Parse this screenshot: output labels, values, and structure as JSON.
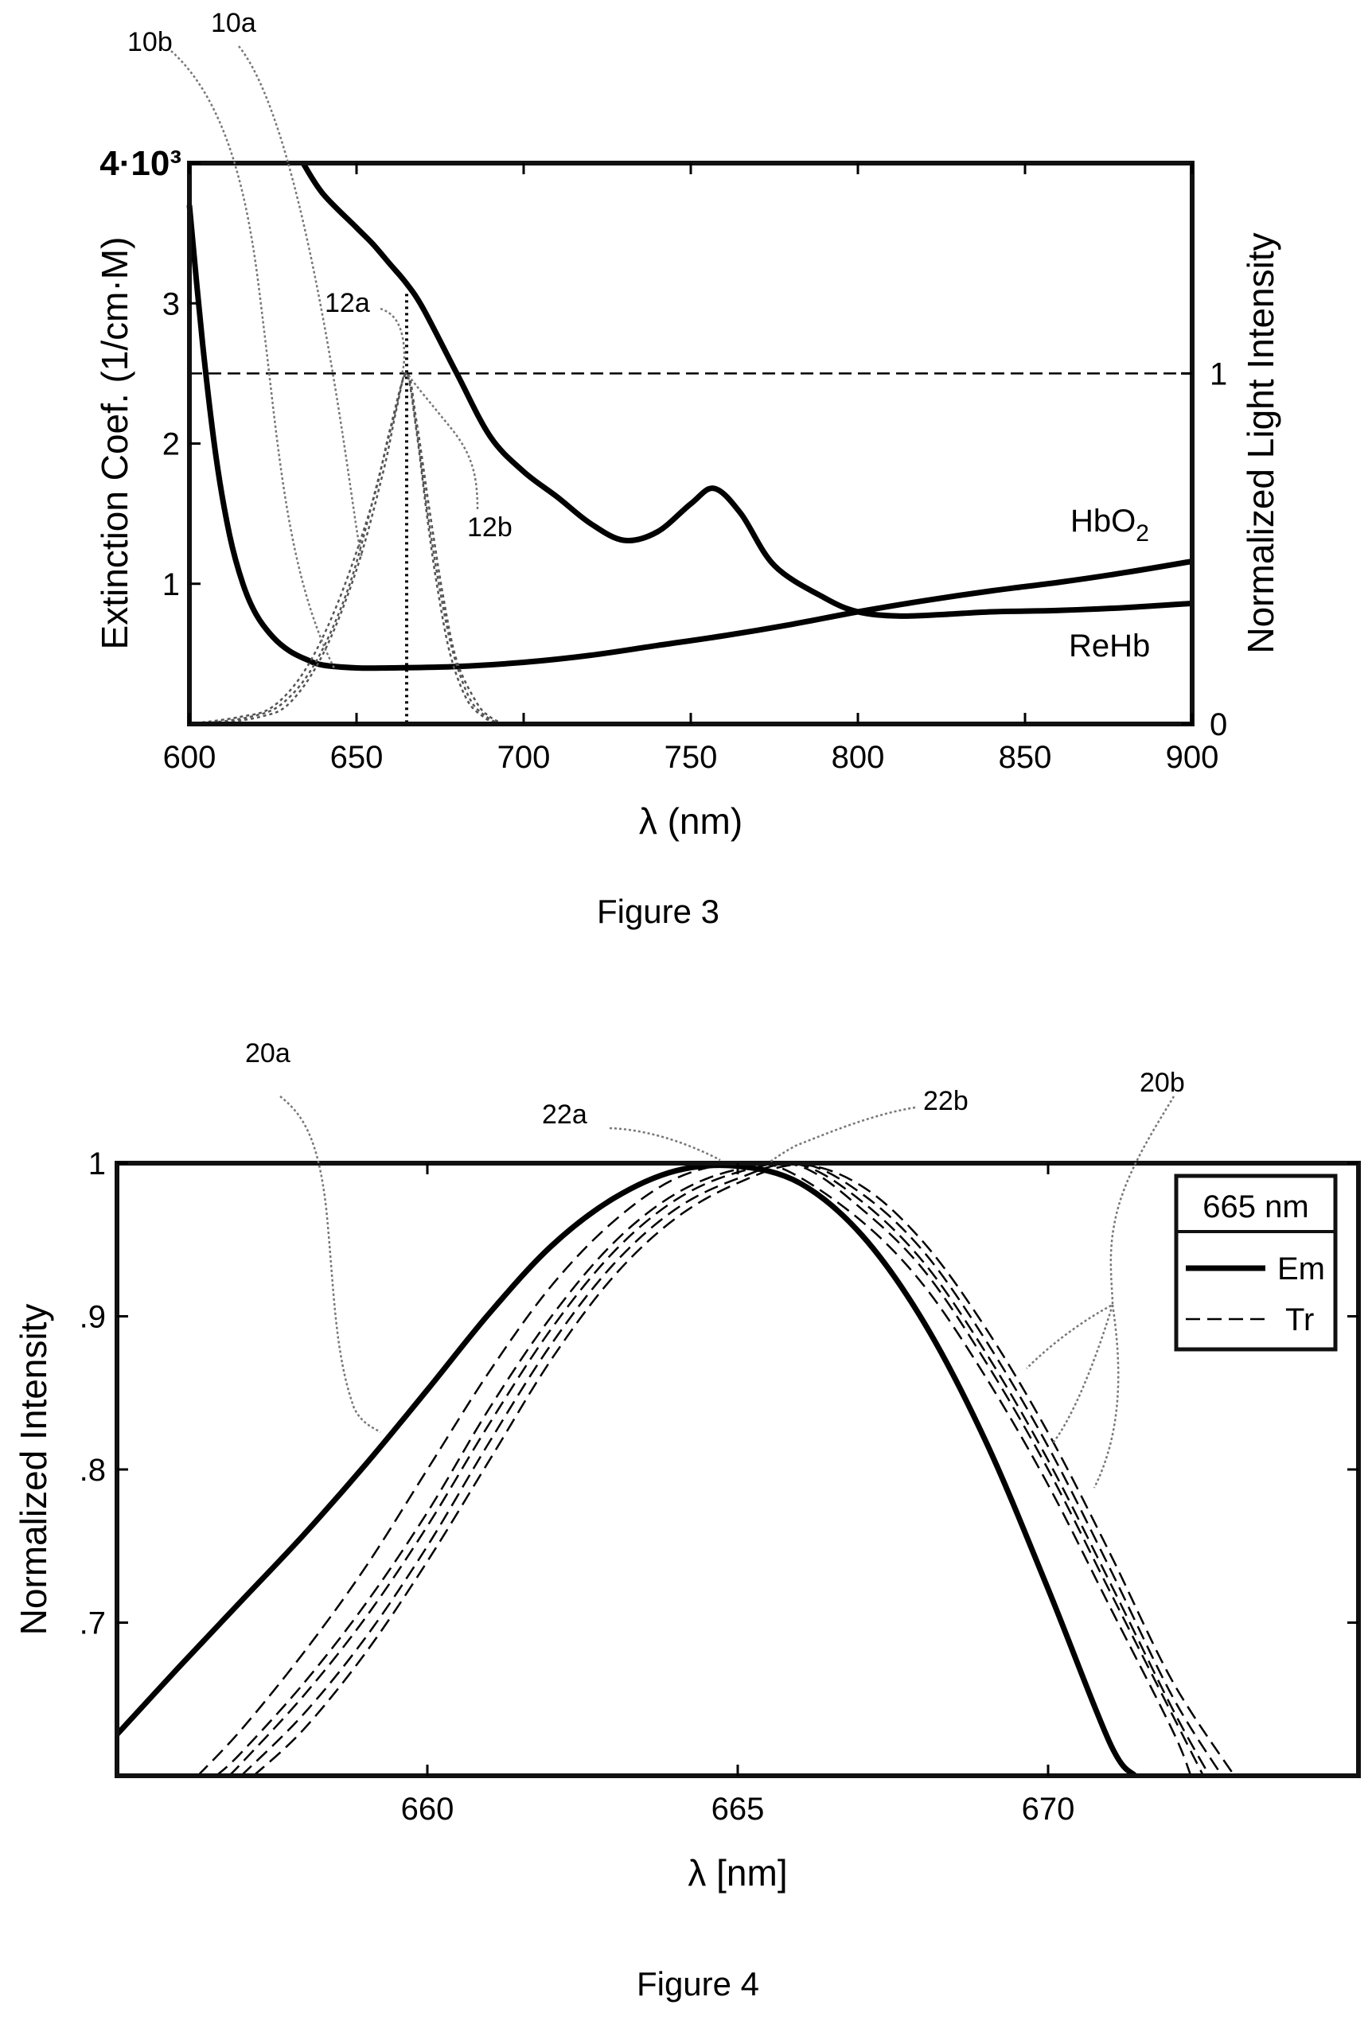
{
  "figure3": {
    "caption": "Figure 3",
    "chart_data": {
      "type": "line",
      "title": "",
      "xlabel": "λ (nm)",
      "ylabel_left": "Extinction Coef. (1/cm·M)",
      "ylabel_right": "Normalized Light Intensity",
      "xlim": [
        600,
        900
      ],
      "ylim_left": [
        0,
        4000
      ],
      "ylim_right": [
        0,
        1.6
      ],
      "x_ticks": [
        "600",
        "650",
        "700",
        "750",
        "800",
        "850",
        "900"
      ],
      "y_ticks_left": [
        {
          "value": 1000,
          "label": "1"
        },
        {
          "value": 2000,
          "label": "2"
        },
        {
          "value": 3000,
          "label": "3"
        },
        {
          "value": 4000,
          "label": "4·10³"
        }
      ],
      "y_ticks_right": [
        {
          "value": 0,
          "label": "0"
        },
        {
          "value": 1,
          "label": "1"
        }
      ],
      "reference_line": {
        "axis": "right",
        "y": 1,
        "style": "dashed"
      },
      "marker_line": {
        "x": 665,
        "style": "dotted"
      },
      "series": [
        {
          "name": "HbO2",
          "axis": "left",
          "style": "solid-thick",
          "x": [
            634,
            640,
            650,
            655,
            660,
            665,
            670,
            680,
            690,
            700,
            710,
            720,
            730,
            740,
            750,
            757,
            765,
            775,
            790,
            800,
            812,
            825,
            840,
            860,
            880,
            900
          ],
          "y": [
            4000,
            3780,
            3540,
            3420,
            3280,
            3140,
            2960,
            2500,
            2050,
            1800,
            1620,
            1430,
            1310,
            1370,
            1570,
            1680,
            1500,
            1130,
            900,
            800,
            770,
            780,
            800,
            810,
            830,
            860
          ]
        },
        {
          "name": "ReHb",
          "axis": "left",
          "style": "solid-thick",
          "x": [
            600,
            604,
            608,
            612,
            616,
            620,
            625,
            630,
            635,
            640,
            650,
            660,
            680,
            700,
            720,
            740,
            760,
            780,
            800,
            820,
            840,
            860,
            880,
            900
          ],
          "y": [
            3700,
            2700,
            1900,
            1350,
            1000,
            780,
            620,
            520,
            460,
            420,
            400,
            400,
            410,
            440,
            490,
            560,
            630,
            710,
            800,
            880,
            950,
            1010,
            1080,
            1160
          ]
        },
        {
          "name": "",
          "axis": "right",
          "style": "dashed-thin",
          "x": [
            600,
            615,
            625,
            635,
            645,
            655,
            660,
            665,
            668,
            672,
            676,
            680,
            686,
            690,
            694
          ],
          "y": [
            0,
            0.02,
            0.05,
            0.16,
            0.36,
            0.64,
            0.84,
            1.0,
            0.86,
            0.6,
            0.36,
            0.18,
            0.06,
            0.02,
            0
          ]
        },
        {
          "name": "",
          "axis": "right",
          "style": "dashed-thin",
          "x": [
            603,
            618,
            628,
            638,
            648,
            656,
            661,
            665,
            668,
            671,
            675,
            679,
            684,
            689,
            693
          ],
          "y": [
            0,
            0.02,
            0.06,
            0.18,
            0.4,
            0.68,
            0.87,
            1.0,
            0.84,
            0.62,
            0.38,
            0.2,
            0.07,
            0.02,
            0
          ]
        },
        {
          "name": "",
          "axis": "right",
          "style": "dashed-thin",
          "x": [
            607,
            621,
            630,
            640,
            650,
            658,
            662,
            665,
            668,
            671,
            674,
            678,
            683,
            688,
            692
          ],
          "y": [
            0,
            0.02,
            0.06,
            0.2,
            0.44,
            0.72,
            0.9,
            1.0,
            0.83,
            0.6,
            0.4,
            0.2,
            0.07,
            0.02,
            0
          ]
        }
      ],
      "curve_labels": [
        "HbO2",
        "ReHb"
      ],
      "reference_labels": [
        "10a",
        "10b",
        "12a",
        "12b"
      ]
    }
  },
  "figure4": {
    "caption": "Figure 4",
    "chart_data": {
      "type": "line",
      "title": "",
      "xlabel": "λ [nm]",
      "ylabel": "Normalized Intensity",
      "xlim": [
        655,
        675
      ],
      "ylim": [
        0.6,
        1.0
      ],
      "x_ticks": [
        "660",
        "665",
        "670"
      ],
      "y_ticks": [
        {
          "value": 0.7,
          "label": ".7"
        },
        {
          "value": 0.8,
          "label": ".8"
        },
        {
          "value": 0.9,
          "label": ".9"
        },
        {
          "value": 1.0,
          "label": "1"
        }
      ],
      "legend": {
        "position": "top-right",
        "title": "665 nm",
        "entries": [
          {
            "label": "Em",
            "style": "solid-thick"
          },
          {
            "label": "Tr",
            "style": "dashed"
          }
        ]
      },
      "series": [
        {
          "name": "Em",
          "style": "solid-thick",
          "x": [
            655,
            656,
            657,
            658,
            659,
            660,
            661,
            662,
            663,
            664,
            665,
            666,
            667,
            668,
            669,
            670,
            671,
            671.4
          ],
          "y": [
            0.627,
            0.671,
            0.714,
            0.757,
            0.803,
            0.852,
            0.902,
            0.946,
            0.977,
            0.995,
            0.998,
            0.987,
            0.953,
            0.896,
            0.818,
            0.722,
            0.621,
            0.6
          ]
        },
        {
          "name": "Tr",
          "style": "dashed",
          "x": [
            656.3,
            657,
            658,
            659,
            660,
            661,
            662,
            663,
            664,
            665,
            665.8,
            667,
            668,
            669,
            670,
            671,
            672,
            672.3
          ],
          "y": [
            0.6,
            0.63,
            0.68,
            0.736,
            0.8,
            0.864,
            0.92,
            0.962,
            0.99,
            1.0,
            0.995,
            0.962,
            0.92,
            0.86,
            0.79,
            0.71,
            0.63,
            0.6
          ]
        },
        {
          "name": "Tr",
          "style": "dashed",
          "x": [
            656.6,
            657,
            658,
            659,
            660,
            661,
            662,
            663,
            664,
            665,
            666,
            667,
            668,
            669,
            670,
            671,
            672,
            672.5
          ],
          "y": [
            0.6,
            0.615,
            0.66,
            0.712,
            0.772,
            0.84,
            0.9,
            0.948,
            0.98,
            0.996,
            0.998,
            0.97,
            0.93,
            0.87,
            0.8,
            0.72,
            0.64,
            0.6
          ]
        },
        {
          "name": "Tr",
          "style": "dashed",
          "x": [
            656.8,
            657,
            658,
            659,
            660,
            661,
            662,
            663,
            664,
            665,
            666,
            667,
            668,
            669,
            670,
            671,
            672,
            672.6
          ],
          "y": [
            0.6,
            0.608,
            0.652,
            0.703,
            0.763,
            0.83,
            0.892,
            0.942,
            0.976,
            0.994,
            0.999,
            0.975,
            0.935,
            0.876,
            0.806,
            0.726,
            0.644,
            0.6
          ]
        },
        {
          "name": "Tr",
          "style": "dashed",
          "x": [
            657,
            658,
            659,
            660,
            661,
            662,
            663,
            664,
            665,
            666,
            667,
            668,
            669,
            670,
            671,
            672,
            672.8
          ],
          "y": [
            0.6,
            0.64,
            0.69,
            0.75,
            0.818,
            0.882,
            0.934,
            0.97,
            0.99,
            1.0,
            0.98,
            0.942,
            0.884,
            0.815,
            0.735,
            0.652,
            0.6
          ]
        },
        {
          "name": "Tr",
          "style": "dashed",
          "x": [
            657.2,
            658,
            659,
            660,
            661,
            662,
            663,
            664,
            665,
            666,
            667,
            668,
            669,
            670,
            671,
            672,
            673
          ],
          "y": [
            0.6,
            0.63,
            0.68,
            0.74,
            0.806,
            0.872,
            0.926,
            0.964,
            0.987,
            0.999,
            0.985,
            0.948,
            0.892,
            0.824,
            0.745,
            0.662,
            0.6
          ]
        }
      ],
      "reference_labels": [
        "20a",
        "20b",
        "22a",
        "22b"
      ]
    }
  }
}
